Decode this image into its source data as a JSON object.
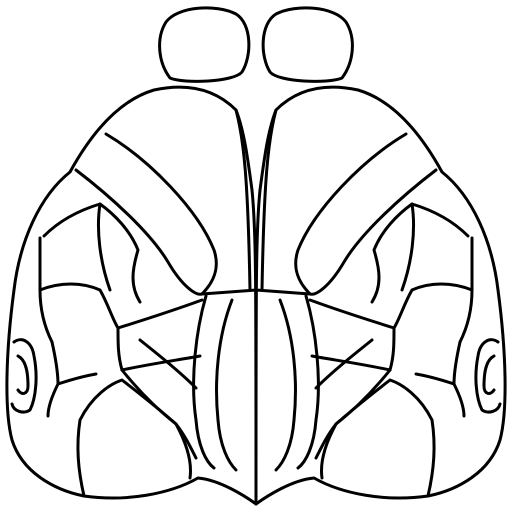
{
  "diagram": {
    "stroke_color": "#000000",
    "fill_color": "#ffffff",
    "background": "#ffffff"
  }
}
